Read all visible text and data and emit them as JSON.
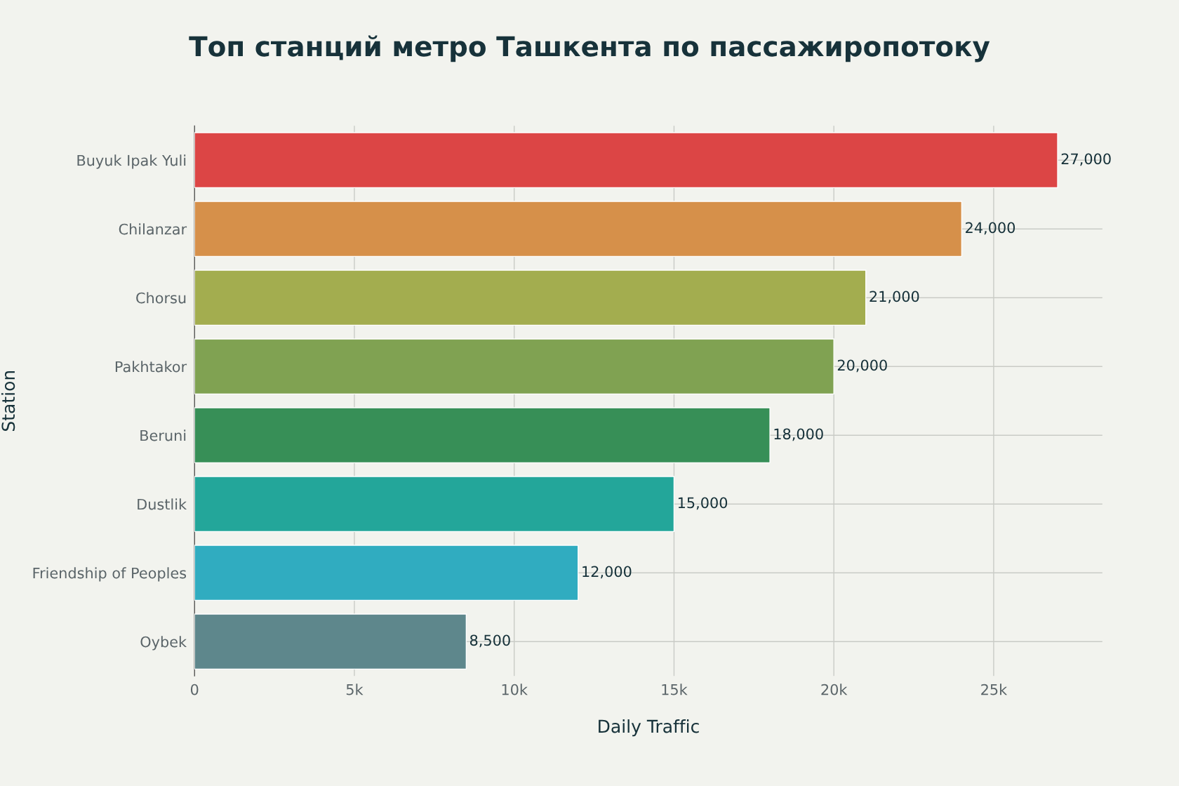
{
  "chart_data": {
    "type": "bar",
    "orientation": "horizontal",
    "title": "Топ станций метро Ташкента по пассажиропотоку",
    "xlabel": "Daily Traffic",
    "ylabel": "Station",
    "categories": [
      "Buyuk Ipak Yuli",
      "Chilanzar",
      "Chorsu",
      "Pakhtakor",
      "Beruni",
      "Dustlik",
      "Friendship of Peoples",
      "Oybek"
    ],
    "values": [
      27000,
      24000,
      21000,
      20000,
      18000,
      15000,
      12000,
      8500
    ],
    "colors": [
      "#dc4545",
      "#d6904a",
      "#a3ad4f",
      "#80a252",
      "#378f57",
      "#23a69a",
      "#30acc0",
      "#5e878c"
    ],
    "value_labels": [
      "27,000",
      "24,000",
      "21,000",
      "20,000",
      "18,000",
      "15,000",
      "12,000",
      "8,500"
    ],
    "xlim": [
      0,
      28400
    ],
    "xticks": [
      0,
      {
        "value": 5000,
        "label": "5k"
      },
      {
        "value": 10000,
        "label": "10k"
      },
      {
        "value": 15000,
        "label": "15k"
      },
      {
        "value": 20000,
        "label": "20k"
      },
      {
        "value": 25000,
        "label": "25k"
      }
    ],
    "grid": true
  }
}
